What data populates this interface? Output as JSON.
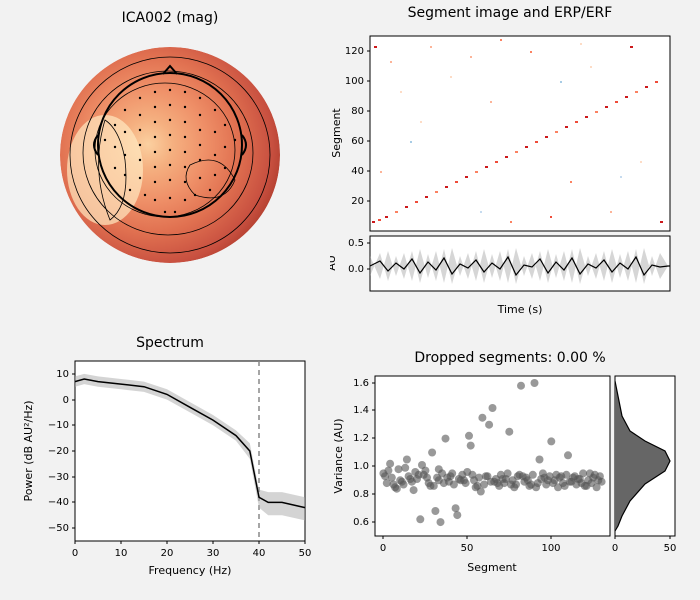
{
  "background_color": "#f2f2f2",
  "topomap": {
    "title": "ICA002 (mag)",
    "title_fontsize": 14,
    "colormap_stops": [
      "#6d0000",
      "#a03020",
      "#c85040",
      "#e07050",
      "#ef9068",
      "#f5b080",
      "#fbd0a0",
      "#ffe8c0",
      "#fff5e0"
    ],
    "sensor_color": "#000000",
    "outline_color": "#000000",
    "contour_color": "#000000"
  },
  "segment_image": {
    "title": "Segment image and ERP/ERF",
    "title_fontsize": 14,
    "ylabel": "Segment",
    "xlabel": "Time (s)",
    "au_label": "AU",
    "yticks": [
      20,
      40,
      60,
      80,
      100,
      120
    ],
    "ylim": [
      0,
      130
    ],
    "au_ticks": [
      0.0,
      0.5
    ],
    "heatmap_colors": [
      "#fff5f0",
      "#fddcc6",
      "#fcb499",
      "#fb8262",
      "#ef4d3a",
      "#cc191c",
      "#99000d"
    ],
    "erp_line_color": "#000000",
    "erp_fill_color": "#999999",
    "erp_fill_opacity": 0.4
  },
  "spectrum": {
    "title": "Spectrum",
    "title_fontsize": 14,
    "xlabel": "Frequency (Hz)",
    "ylabel": "Power (dB AU²/Hz)",
    "xlim": [
      0,
      50
    ],
    "ylim": [
      -55,
      15
    ],
    "xticks": [
      0,
      10,
      20,
      30,
      40,
      50
    ],
    "yticks": [
      -50,
      -40,
      -30,
      -20,
      -10,
      0,
      10
    ],
    "line_color": "#000000",
    "fill_color": "#aaaaaa",
    "fill_opacity": 0.5,
    "vline_x": 40,
    "vline_color": "#888888",
    "vline_dash": "5,4",
    "data_x": [
      0,
      2,
      5,
      10,
      15,
      20,
      25,
      30,
      35,
      38,
      40,
      42,
      45,
      50
    ],
    "data_y": [
      7,
      8,
      7,
      6,
      5,
      2,
      -3,
      -8,
      -14,
      -20,
      -38,
      -40,
      -40,
      -42
    ],
    "band_upper": [
      9,
      10,
      9,
      8,
      7,
      4,
      -1,
      -6,
      -12,
      -17,
      -35,
      -36,
      -36,
      -38
    ],
    "band_lower": [
      5,
      6,
      5,
      4,
      3,
      0,
      -5,
      -10,
      -16,
      -23,
      -42,
      -45,
      -45,
      -47
    ]
  },
  "variance": {
    "title": "Dropped segments: 0.00 %",
    "title_fontsize": 14,
    "xlabel": "Segment",
    "ylabel": "Variance (AU)",
    "xlim": [
      -5,
      135
    ],
    "ylim": [
      0.5,
      1.65
    ],
    "xticks": [
      0,
      50,
      100
    ],
    "yticks": [
      0.6,
      0.8,
      1.0,
      1.2,
      1.4,
      1.6
    ],
    "marker_color": "#555555",
    "marker_opacity": 0.6,
    "marker_size": 4,
    "hist_xlim": [
      0,
      55
    ],
    "hist_xticks": [
      0,
      50
    ],
    "hist_fill": "#666666",
    "hist_line": "#000000",
    "scatter_x": [
      0,
      2,
      4,
      5,
      7,
      9,
      10,
      12,
      14,
      15,
      17,
      19,
      20,
      22,
      24,
      25,
      27,
      29,
      30,
      32,
      33,
      34,
      35,
      37,
      39,
      40,
      42,
      44,
      45,
      47,
      49,
      50,
      52,
      54,
      55,
      57,
      59,
      60,
      62,
      64,
      65,
      67,
      69,
      70,
      72,
      74,
      75,
      77,
      79,
      80,
      82,
      84,
      85,
      87,
      89,
      90,
      92,
      94,
      95,
      97,
      99,
      100,
      102,
      104,
      105,
      107,
      109,
      110,
      112,
      114,
      115,
      117,
      119,
      120,
      122,
      124,
      125,
      127,
      129,
      130,
      3,
      8,
      13,
      18,
      23,
      28,
      33,
      38,
      43,
      48,
      53,
      58,
      63,
      68,
      73,
      78,
      83,
      88,
      93,
      98,
      103,
      108,
      113,
      118,
      123,
      128,
      1,
      6,
      11,
      16,
      21,
      26,
      31,
      36,
      41,
      46,
      51,
      56,
      61,
      66,
      71,
      76,
      81,
      86,
      91,
      96,
      101,
      106,
      111,
      116,
      121,
      126
    ],
    "scatter_y": [
      0.95,
      0.88,
      1.02,
      0.92,
      0.85,
      0.98,
      0.9,
      0.87,
      1.05,
      0.93,
      0.89,
      0.96,
      0.91,
      0.62,
      0.94,
      0.97,
      0.88,
      1.1,
      0.86,
      0.92,
      0.9,
      0.6,
      0.95,
      1.2,
      0.89,
      0.93,
      0.87,
      0.65,
      0.91,
      0.94,
      0.88,
      0.96,
      1.15,
      0.9,
      0.85,
      0.92,
      1.35,
      0.87,
      0.93,
      0.89,
      1.42,
      0.91,
      0.86,
      0.94,
      0.88,
      0.95,
      1.25,
      0.9,
      0.87,
      0.93,
      1.58,
      0.89,
      0.92,
      0.86,
      0.94,
      1.6,
      0.88,
      0.91,
      0.95,
      0.87,
      0.93,
      1.18,
      0.9,
      0.85,
      0.92,
      0.88,
      0.94,
      1.08,
      0.89,
      0.93,
      0.87,
      0.91,
      0.95,
      0.86,
      0.9,
      0.88,
      0.92,
      0.85,
      0.93,
      0.89,
      0.97,
      0.84,
      0.99,
      0.83,
      1.01,
      0.86,
      0.98,
      0.92,
      0.7,
      0.9,
      0.94,
      0.82,
      1.3,
      0.88,
      0.91,
      0.85,
      0.93,
      0.87,
      1.05,
      0.9,
      0.94,
      0.86,
      0.92,
      0.88,
      0.95,
      0.9,
      0.93,
      0.87,
      0.89,
      0.91,
      0.94,
      0.92,
      0.68,
      0.88,
      0.95,
      0.9,
      1.22,
      0.86,
      0.93,
      0.89,
      0.91,
      0.87,
      0.94,
      0.9,
      0.85,
      0.92,
      0.88,
      0.93,
      0.89,
      0.91,
      0.86,
      0.94
    ]
  }
}
